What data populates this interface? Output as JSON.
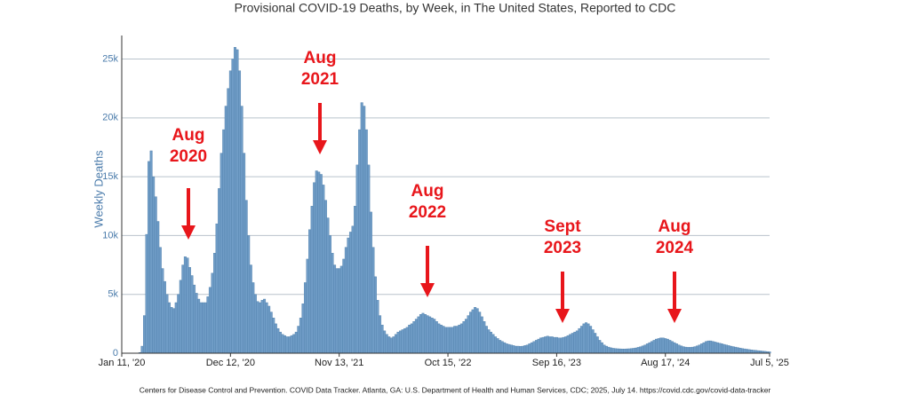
{
  "chart_data": {
    "type": "bar",
    "title": "Provisional COVID-19 Deaths, by Week, in The United States, Reported to CDC",
    "y_label": "Weekly Deaths",
    "source": "Centers for Disease Control and Prevention. COVID Data Tracker. Atlanta, GA: U.S. Department of Health and Human Services, CDC; 2025, July 14. https://covid.cdc.gov/covid-data-tracker",
    "color": "#6f9cc6",
    "grid": true,
    "xlim": [
      0,
      286
    ],
    "xticks": [
      {
        "value": 0,
        "label": "Jan 11, '20"
      },
      {
        "value": 48,
        "label": "Dec 12, '20"
      },
      {
        "value": 96,
        "label": "Nov 13, '21"
      },
      {
        "value": 144,
        "label": "Oct 15, '22"
      },
      {
        "value": 192,
        "label": "Sep 16, '23"
      },
      {
        "value": 240,
        "label": "Aug 17, '24"
      },
      {
        "value": 286,
        "label": "Jul 5, '25"
      }
    ],
    "ylim": [
      0,
      27000
    ],
    "yticks": [
      0,
      {
        "value": 5000,
        "label": "5k"
      },
      {
        "value": 10000,
        "label": "10k"
      },
      {
        "value": 15000,
        "label": "15k"
      },
      {
        "value": 20000,
        "label": "20k"
      },
      {
        "value": 25000,
        "label": "25k"
      }
    ],
    "annotations": [
      {
        "lines": [
          "Aug",
          "2020"
        ]
      },
      {
        "lines": [
          "Aug",
          "2021"
        ]
      },
      {
        "lines": [
          "Aug",
          "2022"
        ]
      },
      {
        "lines": [
          "Sept",
          "2023"
        ]
      },
      {
        "lines": [
          "Aug",
          "2024"
        ]
      }
    ],
    "values": [
      0,
      0,
      0,
      0,
      0,
      0,
      0,
      0,
      60,
      600,
      3200,
      10100,
      16300,
      17200,
      15000,
      13300,
      11200,
      9000,
      7200,
      6100,
      5000,
      4300,
      3900,
      3800,
      4300,
      5000,
      6200,
      7500,
      8200,
      8100,
      7300,
      6600,
      5800,
      5100,
      4600,
      4300,
      4300,
      4300,
      4800,
      5600,
      6800,
      8500,
      11000,
      14000,
      17000,
      19000,
      21000,
      22500,
      24000,
      25000,
      26000,
      25800,
      24000,
      21000,
      17000,
      13000,
      10000,
      7500,
      6000,
      5000,
      4400,
      4300,
      4500,
      4600,
      4300,
      4000,
      3500,
      3000,
      2500,
      2100,
      1800,
      1600,
      1500,
      1400,
      1400,
      1500,
      1600,
      1800,
      2300,
      3000,
      4200,
      6000,
      8000,
      10500,
      12500,
      14500,
      15500,
      15400,
      15200,
      14300,
      13000,
      11500,
      10000,
      8500,
      7500,
      7200,
      7200,
      7400,
      8000,
      9000,
      9800,
      10300,
      10800,
      12500,
      16000,
      19000,
      21300,
      21000,
      19000,
      16000,
      12000,
      9000,
      6500,
      4500,
      3200,
      2400,
      1900,
      1600,
      1400,
      1300,
      1400,
      1600,
      1800,
      1900,
      2000,
      2100,
      2200,
      2400,
      2500,
      2700,
      2900,
      3100,
      3300,
      3400,
      3300,
      3200,
      3100,
      3000,
      2900,
      2700,
      2500,
      2400,
      2300,
      2200,
      2200,
      2200,
      2200,
      2300,
      2300,
      2400,
      2500,
      2700,
      2900,
      3200,
      3500,
      3700,
      3900,
      3800,
      3500,
      3100,
      2700,
      2300,
      2000,
      1800,
      1600,
      1400,
      1250,
      1100,
      1000,
      900,
      800,
      750,
      700,
      650,
      600,
      600,
      580,
      600,
      650,
      700,
      800,
      900,
      1000,
      1100,
      1200,
      1300,
      1350,
      1400,
      1450,
      1400,
      1400,
      1350,
      1350,
      1300,
      1300,
      1350,
      1400,
      1500,
      1600,
      1700,
      1800,
      1900,
      2100,
      2300,
      2500,
      2600,
      2500,
      2300,
      2000,
      1700,
      1400,
      1100,
      900,
      700,
      600,
      520,
      460,
      420,
      400,
      380,
      370,
      360,
      360,
      370,
      380,
      400,
      420,
      450,
      500,
      550,
      620,
      700,
      800,
      900,
      1000,
      1100,
      1200,
      1250,
      1300,
      1300,
      1250,
      1200,
      1100,
      1000,
      900,
      800,
      700,
      620,
      560,
      520,
      500,
      500,
      520,
      560,
      620,
      700,
      800,
      900,
      1000,
      1050,
      1050,
      1000,
      950,
      900,
      850,
      800,
      750,
      700,
      650,
      600,
      560,
      520,
      480,
      440,
      400,
      370,
      340,
      310,
      280,
      260,
      240,
      220,
      200,
      180,
      160,
      140,
      120
    ]
  }
}
